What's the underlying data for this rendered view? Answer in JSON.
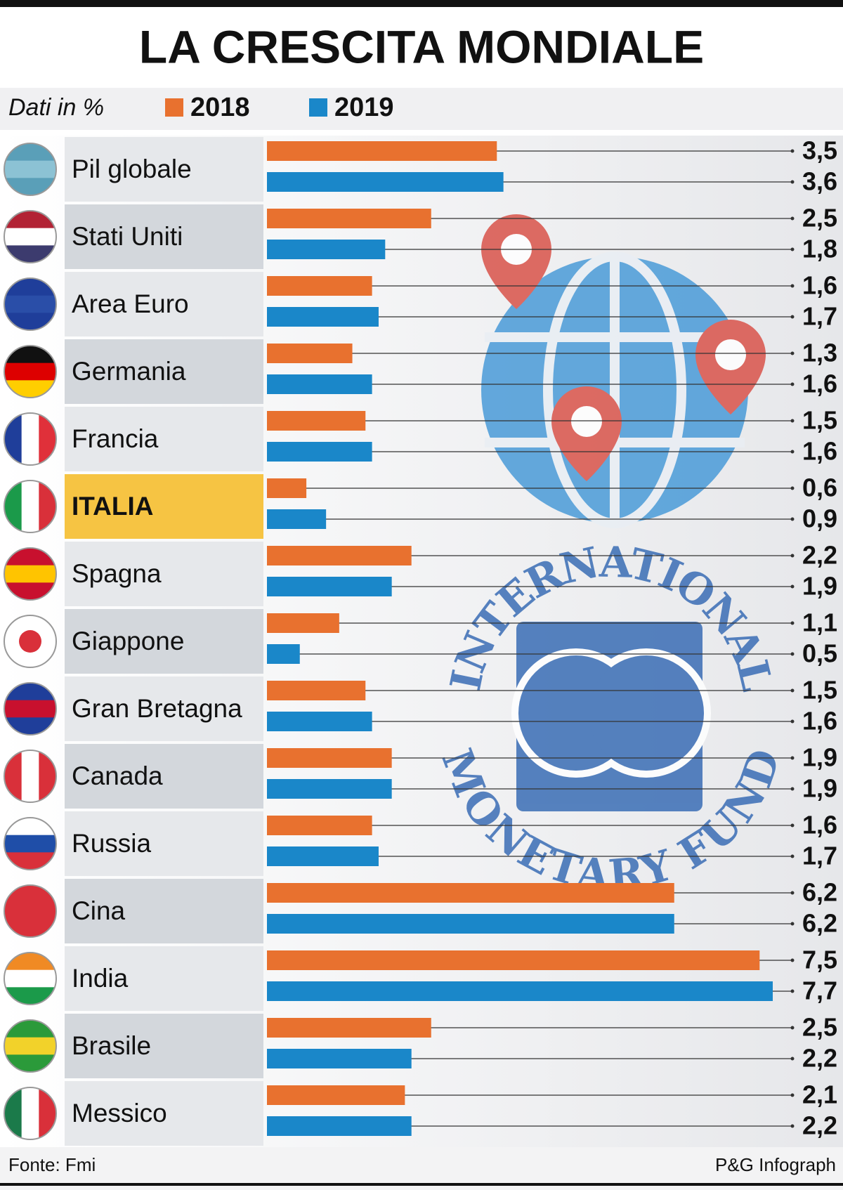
{
  "chart_data": {
    "type": "bar",
    "orientation": "horizontal",
    "title": "LA CRESCITA MONDIALE",
    "subtitle": "Dati in %",
    "categories": [
      "Pil globale",
      "Stati Uniti",
      "Area Euro",
      "Germania",
      "Francia",
      "ITALIA",
      "Spagna",
      "Giappone",
      "Gran Bretagna",
      "Canada",
      "Russia",
      "Cina",
      "India",
      "Brasile",
      "Messico"
    ],
    "series": [
      {
        "name": "2018",
        "color": "#e8712f",
        "values": [
          3.5,
          2.5,
          1.6,
          1.3,
          1.5,
          0.6,
          2.2,
          1.1,
          1.5,
          1.9,
          1.6,
          6.2,
          7.5,
          2.5,
          2.1
        ],
        "value_labels": [
          "3,5",
          "2,5",
          "1,6",
          "1,3",
          "1,5",
          "0,6",
          "2,2",
          "1,1",
          "1,5",
          "1,9",
          "1,6",
          "6,2",
          "7,5",
          "2,5",
          "2,1"
        ]
      },
      {
        "name": "2019",
        "color": "#1a87c9",
        "values": [
          3.6,
          1.8,
          1.7,
          1.6,
          1.6,
          0.9,
          1.9,
          0.5,
          1.6,
          1.9,
          1.7,
          6.2,
          7.7,
          2.2,
          2.2
        ],
        "value_labels": [
          "3,6",
          "1,8",
          "1,7",
          "1,6",
          "1,6",
          "0,9",
          "1,9",
          "0,5",
          "1,6",
          "1,9",
          "1,7",
          "6,2",
          "7,7",
          "2,2",
          "2,2"
        ]
      }
    ],
    "logo_text": [
      "INTERNATIONAL",
      "MONETARY FUND"
    ],
    "source": "Fonte: Fmi",
    "credit": "P&G Infograph"
  }
}
